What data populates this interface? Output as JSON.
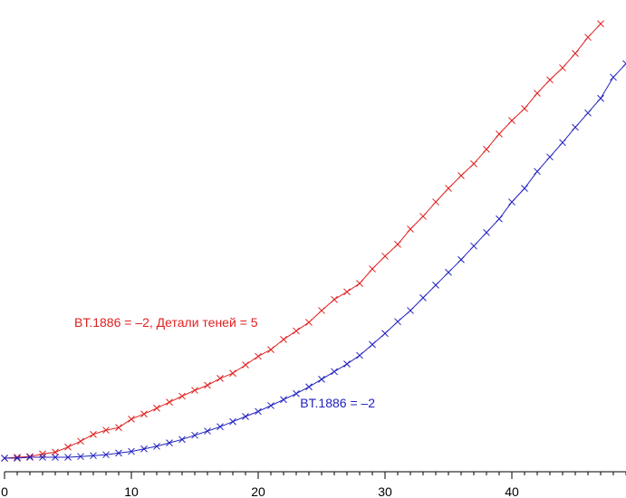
{
  "chart_data": {
    "type": "line",
    "title": "",
    "xlabel": "",
    "ylabel": "",
    "xlim": [
      0,
      49
    ],
    "ylim": [
      0,
      36
    ],
    "xticks": [
      0,
      10,
      20,
      30,
      40
    ],
    "tick_labels": [
      "0",
      "10",
      "20",
      "30",
      "40"
    ],
    "grid": false,
    "axis_color": "#000000",
    "series": [
      {
        "name": "BT.1886 = –2, Детали теней = 5",
        "color": "#e02020",
        "x": [
          0,
          1,
          2,
          3,
          4,
          5,
          6,
          7,
          8,
          9,
          10,
          11,
          12,
          13,
          14,
          15,
          16,
          17,
          18,
          19,
          20,
          21,
          22,
          23,
          24,
          25,
          26,
          27,
          28,
          29,
          30,
          31,
          32,
          33,
          34,
          35,
          36,
          37,
          38,
          39,
          40,
          41,
          42,
          43,
          44,
          45,
          46,
          47
        ],
        "y": [
          0.0,
          0.07,
          0.13,
          0.33,
          0.47,
          0.87,
          1.33,
          1.87,
          2.2,
          2.4,
          3.07,
          3.47,
          3.93,
          4.4,
          4.87,
          5.33,
          5.73,
          6.27,
          6.67,
          7.33,
          8.0,
          8.53,
          9.33,
          10.0,
          10.67,
          11.6,
          12.47,
          13.07,
          13.73,
          14.87,
          15.87,
          16.8,
          18.0,
          19.0,
          20.13,
          21.2,
          22.2,
          23.13,
          24.27,
          25.47,
          26.53,
          27.47,
          28.67,
          29.73,
          30.67,
          31.8,
          33.07,
          34.13
        ]
      },
      {
        "name": "BT.1886 = –2",
        "color": "#2020c0",
        "x": [
          0,
          1,
          2,
          3,
          4,
          5,
          6,
          7,
          8,
          9,
          10,
          11,
          12,
          13,
          14,
          15,
          16,
          17,
          18,
          19,
          20,
          21,
          22,
          23,
          24,
          25,
          26,
          27,
          28,
          29,
          30,
          31,
          32,
          33,
          34,
          35,
          36,
          37,
          38,
          39,
          40,
          41,
          42,
          43,
          44,
          45,
          46,
          47,
          48,
          49
        ],
        "y": [
          0.0,
          0.0,
          0.07,
          0.07,
          0.07,
          0.07,
          0.13,
          0.2,
          0.27,
          0.4,
          0.53,
          0.73,
          0.93,
          1.2,
          1.47,
          1.8,
          2.13,
          2.47,
          2.87,
          3.27,
          3.67,
          4.13,
          4.6,
          5.07,
          5.6,
          6.2,
          6.8,
          7.4,
          8.07,
          8.93,
          9.8,
          10.73,
          11.6,
          12.6,
          13.6,
          14.6,
          15.6,
          16.67,
          17.73,
          18.8,
          20.13,
          21.2,
          22.53,
          23.67,
          24.8,
          26.0,
          27.13,
          28.27,
          29.93,
          31.0
        ]
      }
    ],
    "annotations": [
      {
        "series": 0,
        "text": "BT.1886 = –2, Детали теней = 5",
        "color": "#e02020",
        "x": 5.5,
        "y": 10.3
      },
      {
        "series": 1,
        "text": "BT.1886 = –2",
        "color": "#2020c0",
        "x": 23.3,
        "y": 4.0
      }
    ]
  }
}
